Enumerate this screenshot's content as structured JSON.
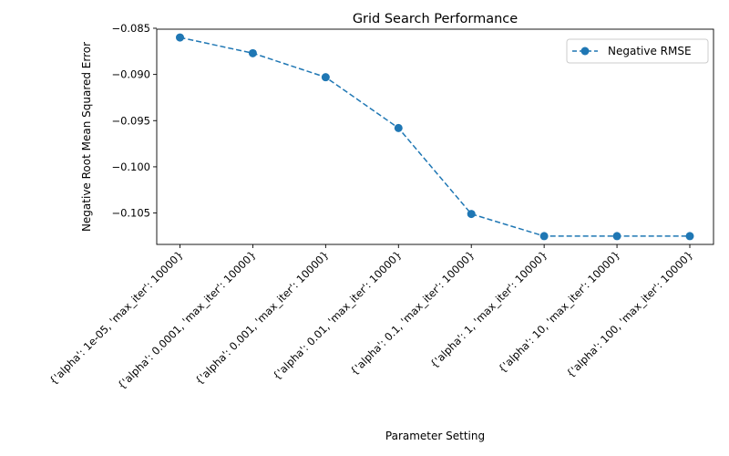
{
  "chart_data": {
    "type": "line",
    "title": "Grid Search Performance",
    "xlabel": "Parameter Setting",
    "ylabel": "Negative Root Mean Squared Error",
    "categories": [
      "{'alpha': 1e-05, 'max_iter': 10000}",
      "{'alpha': 0.0001, 'max_iter': 10000}",
      "{'alpha': 0.001, 'max_iter': 10000}",
      "{'alpha': 0.01, 'max_iter': 10000}",
      "{'alpha': 0.1, 'max_iter': 10000}",
      "{'alpha': 1, 'max_iter': 10000}",
      "{'alpha': 10, 'max_iter': 10000}",
      "{'alpha': 100, 'max_iter': 10000}"
    ],
    "series": [
      {
        "name": "Negative RMSE",
        "values": [
          -0.086,
          -0.0877,
          -0.0903,
          -0.0958,
          -0.1051,
          -0.1075,
          -0.1075,
          -0.1075
        ],
        "color": "#1f77b4",
        "line_style": "dashed",
        "marker": "circle"
      }
    ],
    "ylim": [
      -0.1084,
      -0.0851
    ],
    "yticks": [
      -0.085,
      -0.09,
      -0.095,
      -0.1,
      -0.105
    ],
    "ytick_labels": [
      "−0.085",
      "−0.090",
      "−0.095",
      "−0.100",
      "−0.105"
    ],
    "grid": false,
    "legend_position": "top-right"
  }
}
